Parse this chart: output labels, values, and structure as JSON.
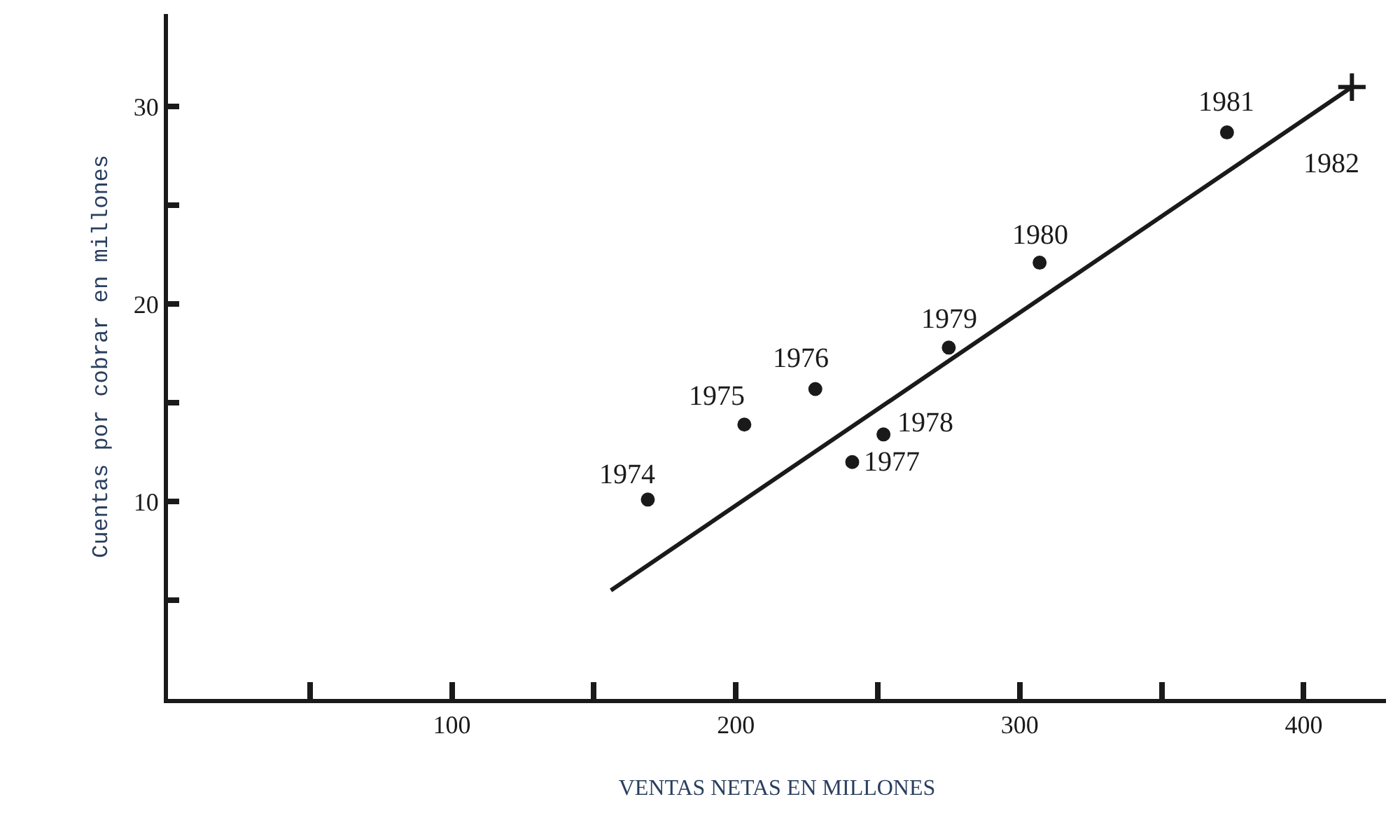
{
  "chart_data": {
    "type": "scatter",
    "xlabel": "VENTAS NETAS EN MILLONES",
    "ylabel": "Cuentas por cobrar en millones",
    "xlim": [
      0,
      429
    ],
    "ylim": [
      0,
      34.7
    ],
    "xticks": [
      {
        "value": 50,
        "label": null
      },
      100,
      {
        "value": 150,
        "label": null
      },
      200,
      {
        "value": 250,
        "label": null
      },
      300,
      {
        "value": 350,
        "label": null
      },
      400
    ],
    "yticks": [
      {
        "value": 5,
        "label": null
      },
      10,
      {
        "value": 15,
        "label": null
      },
      20,
      {
        "value": 25,
        "label": null
      },
      30
    ],
    "series": [
      {
        "marker": "circle",
        "color": "#1a1a1a",
        "x": [
          169,
          203,
          228,
          241,
          252,
          275,
          307,
          373
        ],
        "values": [
          10.1,
          13.9,
          15.7,
          12.0,
          13.4,
          17.8,
          22.1,
          28.7
        ]
      },
      {
        "marker": "cross",
        "color": "#1a1a1a",
        "x": [
          417
        ],
        "values": [
          31.0
        ]
      },
      {
        "type": "line",
        "marker": "none",
        "color": "#1a1a1a",
        "x": [
          156,
          417
        ],
        "values": [
          5.5,
          31.0
        ]
      }
    ],
    "annotations": [
      {
        "text": "1974",
        "x": 169,
        "y": 10.1
      },
      {
        "text": "1975",
        "x": 203,
        "y": 13.9
      },
      {
        "text": "1976",
        "x": 228,
        "y": 15.7
      },
      {
        "text": "1977",
        "x": 241,
        "y": 12.0
      },
      {
        "text": "1978",
        "x": 252,
        "y": 13.4
      },
      {
        "text": "1979",
        "x": 275,
        "y": 17.8
      },
      {
        "text": "1980",
        "x": 307,
        "y": 22.1
      },
      {
        "text": "1981",
        "x": 373,
        "y": 28.7
      },
      {
        "text": "1982",
        "x": 417,
        "y": 31.0
      }
    ]
  }
}
